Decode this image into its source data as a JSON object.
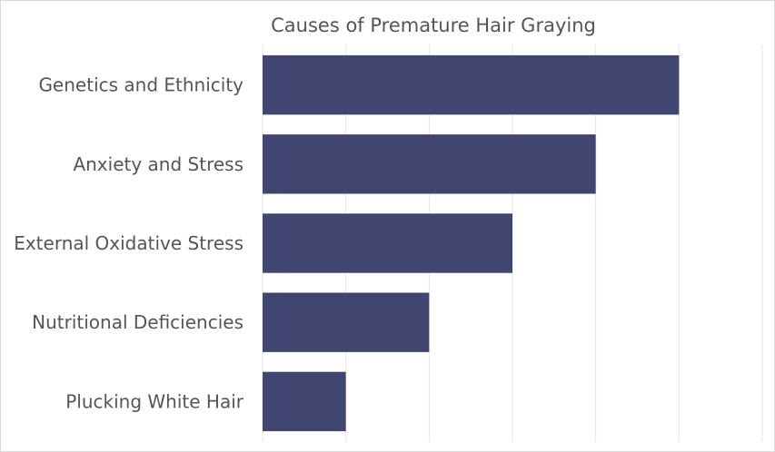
{
  "chart_data": {
    "type": "bar",
    "orientation": "horizontal",
    "title": "Causes of Premature Hair Graying",
    "categories": [
      "Genetics and Ethnicity",
      "Anxiety and Stress",
      "External Oxidative Stress",
      "Nutritional Deficiencies",
      "Plucking White Hair"
    ],
    "values": [
      5,
      4,
      3,
      2,
      1
    ],
    "xlim": [
      0,
      6
    ],
    "xlabel": "",
    "ylabel": "",
    "grid": "vertical",
    "legend": "none",
    "colors": {
      "bar": "#414671",
      "grid": "#e6e6e6",
      "text": "#555555",
      "border": "#d9d9d9"
    }
  }
}
